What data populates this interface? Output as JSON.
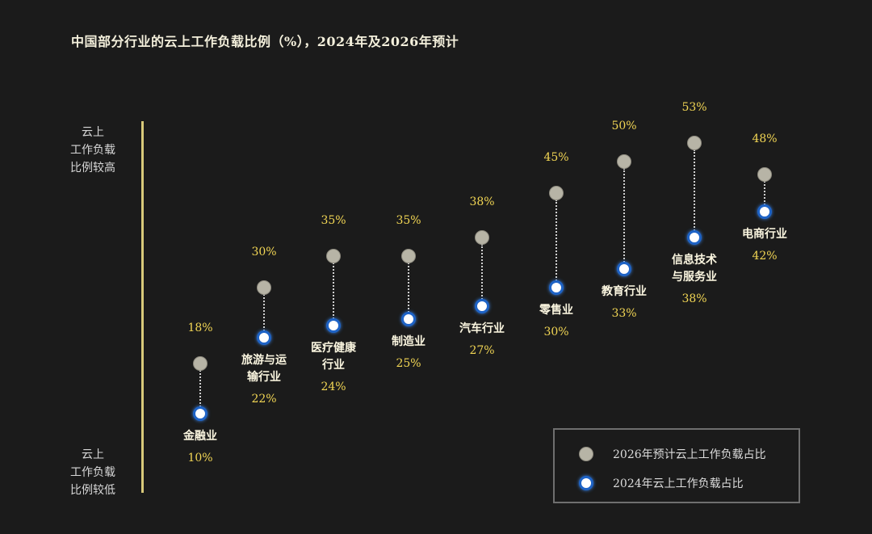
{
  "chart_data": {
    "type": "dumbbell",
    "title": "中国部分行业的云上工作负载比例（%），2024年及2026年预计",
    "y_axis_top_label": [
      "云上",
      "工作负载",
      "比例较高"
    ],
    "y_axis_bottom_label": [
      "云上",
      "工作负载",
      "比例较低"
    ],
    "categories": [
      {
        "name": [
          "金融业"
        ],
        "v2024": 10,
        "v2026": 18
      },
      {
        "name": [
          "旅游与运",
          "输行业"
        ],
        "v2024": 22,
        "v2026": 30
      },
      {
        "name": [
          "医疗健康",
          "行业"
        ],
        "v2024": 24,
        "v2026": 35
      },
      {
        "name": [
          "制造业"
        ],
        "v2024": 25,
        "v2026": 35
      },
      {
        "name": [
          "汽车行业"
        ],
        "v2024": 27,
        "v2026": 38
      },
      {
        "name": [
          "零售业"
        ],
        "v2024": 30,
        "v2026": 45
      },
      {
        "name": [
          "教育行业"
        ],
        "v2024": 33,
        "v2026": 50
      },
      {
        "name": [
          "信息技术",
          "与服务业"
        ],
        "v2024": 38,
        "v2026": 53
      },
      {
        "name": [
          "电商行业"
        ],
        "v2024": 42,
        "v2026": 48
      }
    ],
    "series": [
      {
        "name": "2026年预计云上工作负载占比",
        "color": "#b7b4a6"
      },
      {
        "name": "2024年云上工作负载占比",
        "color": "#1e63c6"
      }
    ],
    "value_suffix": "%"
  }
}
